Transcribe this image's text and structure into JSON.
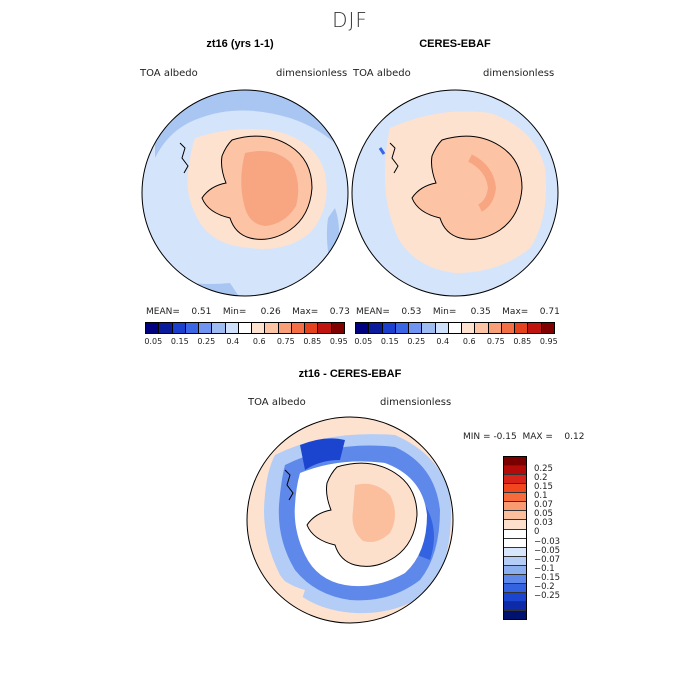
{
  "suptitle": "DJF",
  "panels": [
    {
      "title": "zt16 (yrs 1-1)",
      "left_label": "TOA albedo",
      "right_label": "dimensionless",
      "mean_label": "MEAN=",
      "mean": "0.51",
      "min_label": "Min=",
      "min": "0.26",
      "max_label": "Max=",
      "max": "0.73"
    },
    {
      "title": "CERES-EBAF",
      "left_label": "TOA albedo",
      "right_label": "dimensionless",
      "mean_label": "MEAN=",
      "mean": "0.53",
      "min_label": "Min=",
      "min": "0.35",
      "max_label": "Max=",
      "max": "0.71"
    }
  ],
  "albedo_colorbar": {
    "colors": [
      "#000080",
      "#0a1c9c",
      "#1b3fcf",
      "#3a66e6",
      "#6f95f0",
      "#9fbcf2",
      "#cfe0fa",
      "#ffffff",
      "#fde2d0",
      "#fcc3a5",
      "#f89f78",
      "#f46e46",
      "#e6421e",
      "#c0140e",
      "#800000"
    ],
    "ticks": [
      "0.05",
      "0.15",
      "0.25",
      "0.4",
      "0.6",
      "0.75",
      "0.85",
      "0.95"
    ]
  },
  "diff_panel": {
    "title": "zt16 - CERES-EBAF",
    "left_label": "TOA albedo",
    "right_label": "dimensionless",
    "min_label": "MIN =",
    "min": "-0.15",
    "max_label": "MAX =",
    "max": "0.12"
  },
  "diff_colorbar": {
    "colors": [
      "#7a0000",
      "#b30a0a",
      "#d8231a",
      "#f2461f",
      "#f76a3c",
      "#f99a70",
      "#fbbf9d",
      "#fde0cc",
      "#ffffff",
      "#ffffff",
      "#d7e6fb",
      "#b3cdf6",
      "#8caff0",
      "#5e89ea",
      "#3463e2",
      "#1c45cf",
      "#0d2ba8",
      "#00126f"
    ],
    "ticks": [
      "0.25",
      "0.2",
      "0.15",
      "0.1",
      "0.07",
      "0.05",
      "0.03",
      "0",
      "−0.03",
      "−0.05",
      "−0.07",
      "−0.1",
      "−0.15",
      "−0.2",
      "−0.25"
    ]
  }
}
